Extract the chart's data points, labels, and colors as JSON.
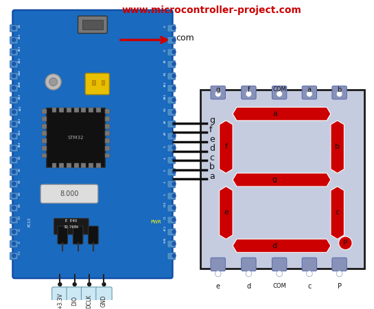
{
  "title": "www.microcontroller-project.com",
  "title_color": "#cc0000",
  "title_fontsize": 10,
  "bg_color": "#ffffff",
  "board_facecolor": "#1a6abf",
  "board_edgecolor": "#0d47a1",
  "seg_color": "#cc0000",
  "seg_bg": "#c5cce0",
  "seg_border": "#1a1a1a",
  "pin_pad_color": "#8892b8",
  "pin_labels_top": [
    "g",
    "f",
    "COM",
    "a",
    "b"
  ],
  "pin_labels_bot": [
    "e",
    "d",
    "COM",
    "c",
    "P"
  ],
  "com_arrow_label": "com",
  "wire_labels": [
    "g",
    "f",
    "e",
    "d",
    "c",
    "b",
    "a"
  ],
  "bottom_pin_labels": [
    "+3.3V",
    "DIO",
    "DCLK",
    "GND"
  ],
  "bottom_pin_bg": "#cce8f4"
}
